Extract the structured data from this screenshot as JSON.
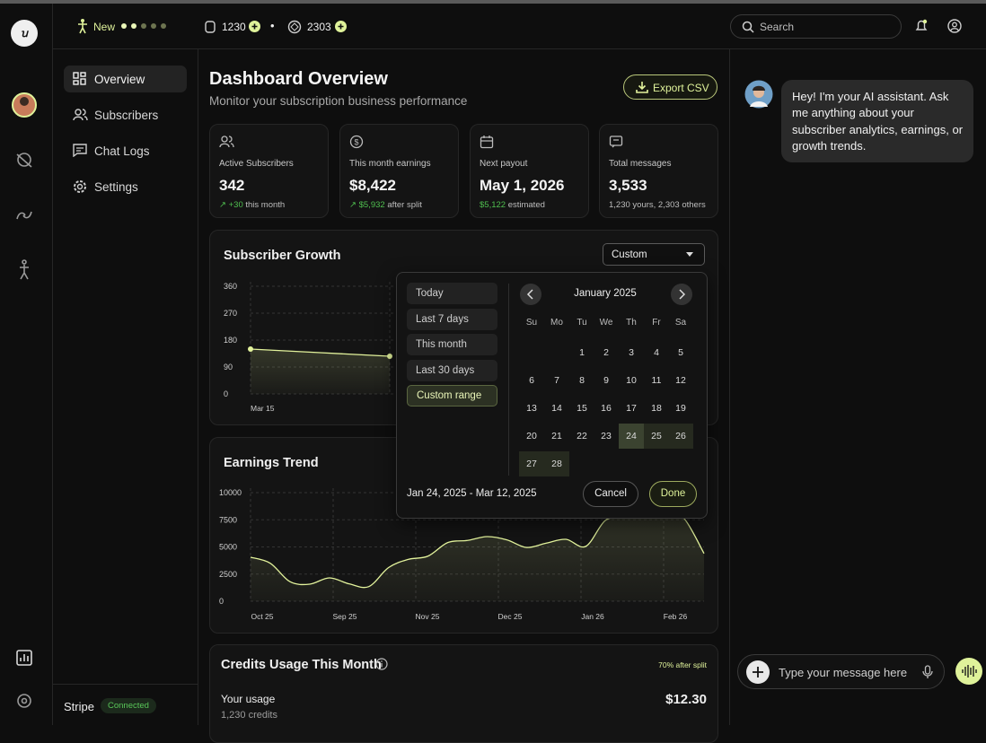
{
  "top_bar": {
    "new_label": "New",
    "credits_a": "1230",
    "separator": "•",
    "credits_b": "2303",
    "search_placeholder": "Search"
  },
  "sidebar": {
    "nav": [
      "Overview",
      "Subscribers",
      "Chat Logs",
      "Settings"
    ],
    "integration": "Stripe",
    "status": "Connected"
  },
  "header": {
    "title": "Dashboard Overview",
    "subtitle": "Monitor your subscription business performance",
    "export_button": "Export CSV"
  },
  "stats": [
    {
      "label": "Active Subscribers",
      "value": "342",
      "delta": "+30",
      "note": "this month"
    },
    {
      "label": "This month earnings",
      "value": "$8,422",
      "delta": "$5,932",
      "note": "after split"
    },
    {
      "label": "Next payout",
      "value": "May 1, 2026",
      "delta": "$5,122",
      "note": "estimated"
    },
    {
      "label": "Total messages",
      "value": "3,533",
      "note": "1,230 yours, 2,303 others"
    }
  ],
  "chart_data": [
    {
      "type": "line",
      "title": "Subscriber Growth",
      "filter": "Custom",
      "color": "#e3f39c",
      "categories": [
        "Mar 15",
        null
      ],
      "values": [
        150,
        126
      ],
      "ylim": [
        0,
        360
      ],
      "yticks": [
        0,
        90,
        180,
        270,
        360
      ],
      "grid": true
    },
    {
      "type": "line",
      "title": "Earnings Trend",
      "color": "#e3f39c",
      "x_labels": [
        "Oct 25",
        "Sep 25",
        "Nov 25",
        "Dec 25",
        "Jan 26",
        "Feb 26"
      ],
      "values": [
        4050,
        3500,
        1800,
        1570,
        2150,
        1600,
        1350,
        3100,
        3850,
        4150,
        5400,
        5600,
        5950,
        5650,
        4950,
        5350,
        5700,
        5050,
        7450,
        7750,
        8500,
        8700,
        7600,
        4400
      ],
      "ylim": [
        0,
        10000
      ],
      "yticks": [
        0,
        2500,
        5000,
        7500,
        10000
      ],
      "grid": true
    }
  ],
  "date_picker": {
    "presets": [
      "Today",
      "Last 7 days",
      "This month",
      "Last 30 days",
      "Custom range"
    ],
    "active_preset": 4,
    "month": "January 2025",
    "weekdays": [
      "Su",
      "Mo",
      "Tu",
      "We",
      "Th",
      "Fr",
      "Sa"
    ],
    "weeks": [
      [
        null,
        null,
        1,
        2,
        3,
        4,
        5
      ],
      [
        6,
        7,
        8,
        9,
        10,
        11,
        12
      ],
      [
        13,
        14,
        15,
        16,
        17,
        18,
        19
      ],
      [
        20,
        21,
        22,
        23,
        24,
        25,
        26
      ],
      [
        27,
        28,
        null,
        null,
        null,
        null,
        null
      ]
    ],
    "selected_range": [
      24,
      28
    ],
    "range_text": "Jan 24, 2025 - Mar 12, 2025",
    "cancel": "Cancel",
    "done": "Done"
  },
  "credits": {
    "title": "Credits Usage This Month",
    "split_note": "70% after split",
    "usage_label": "Your usage",
    "usage_credits": "1,230 credits",
    "usage_amount": "$12.30"
  },
  "chat": {
    "message": "Hey! I'm your AI assistant. Ask me anything about your subscriber analytics, earnings, or growth trends.",
    "input_placeholder": "Type your message here"
  }
}
